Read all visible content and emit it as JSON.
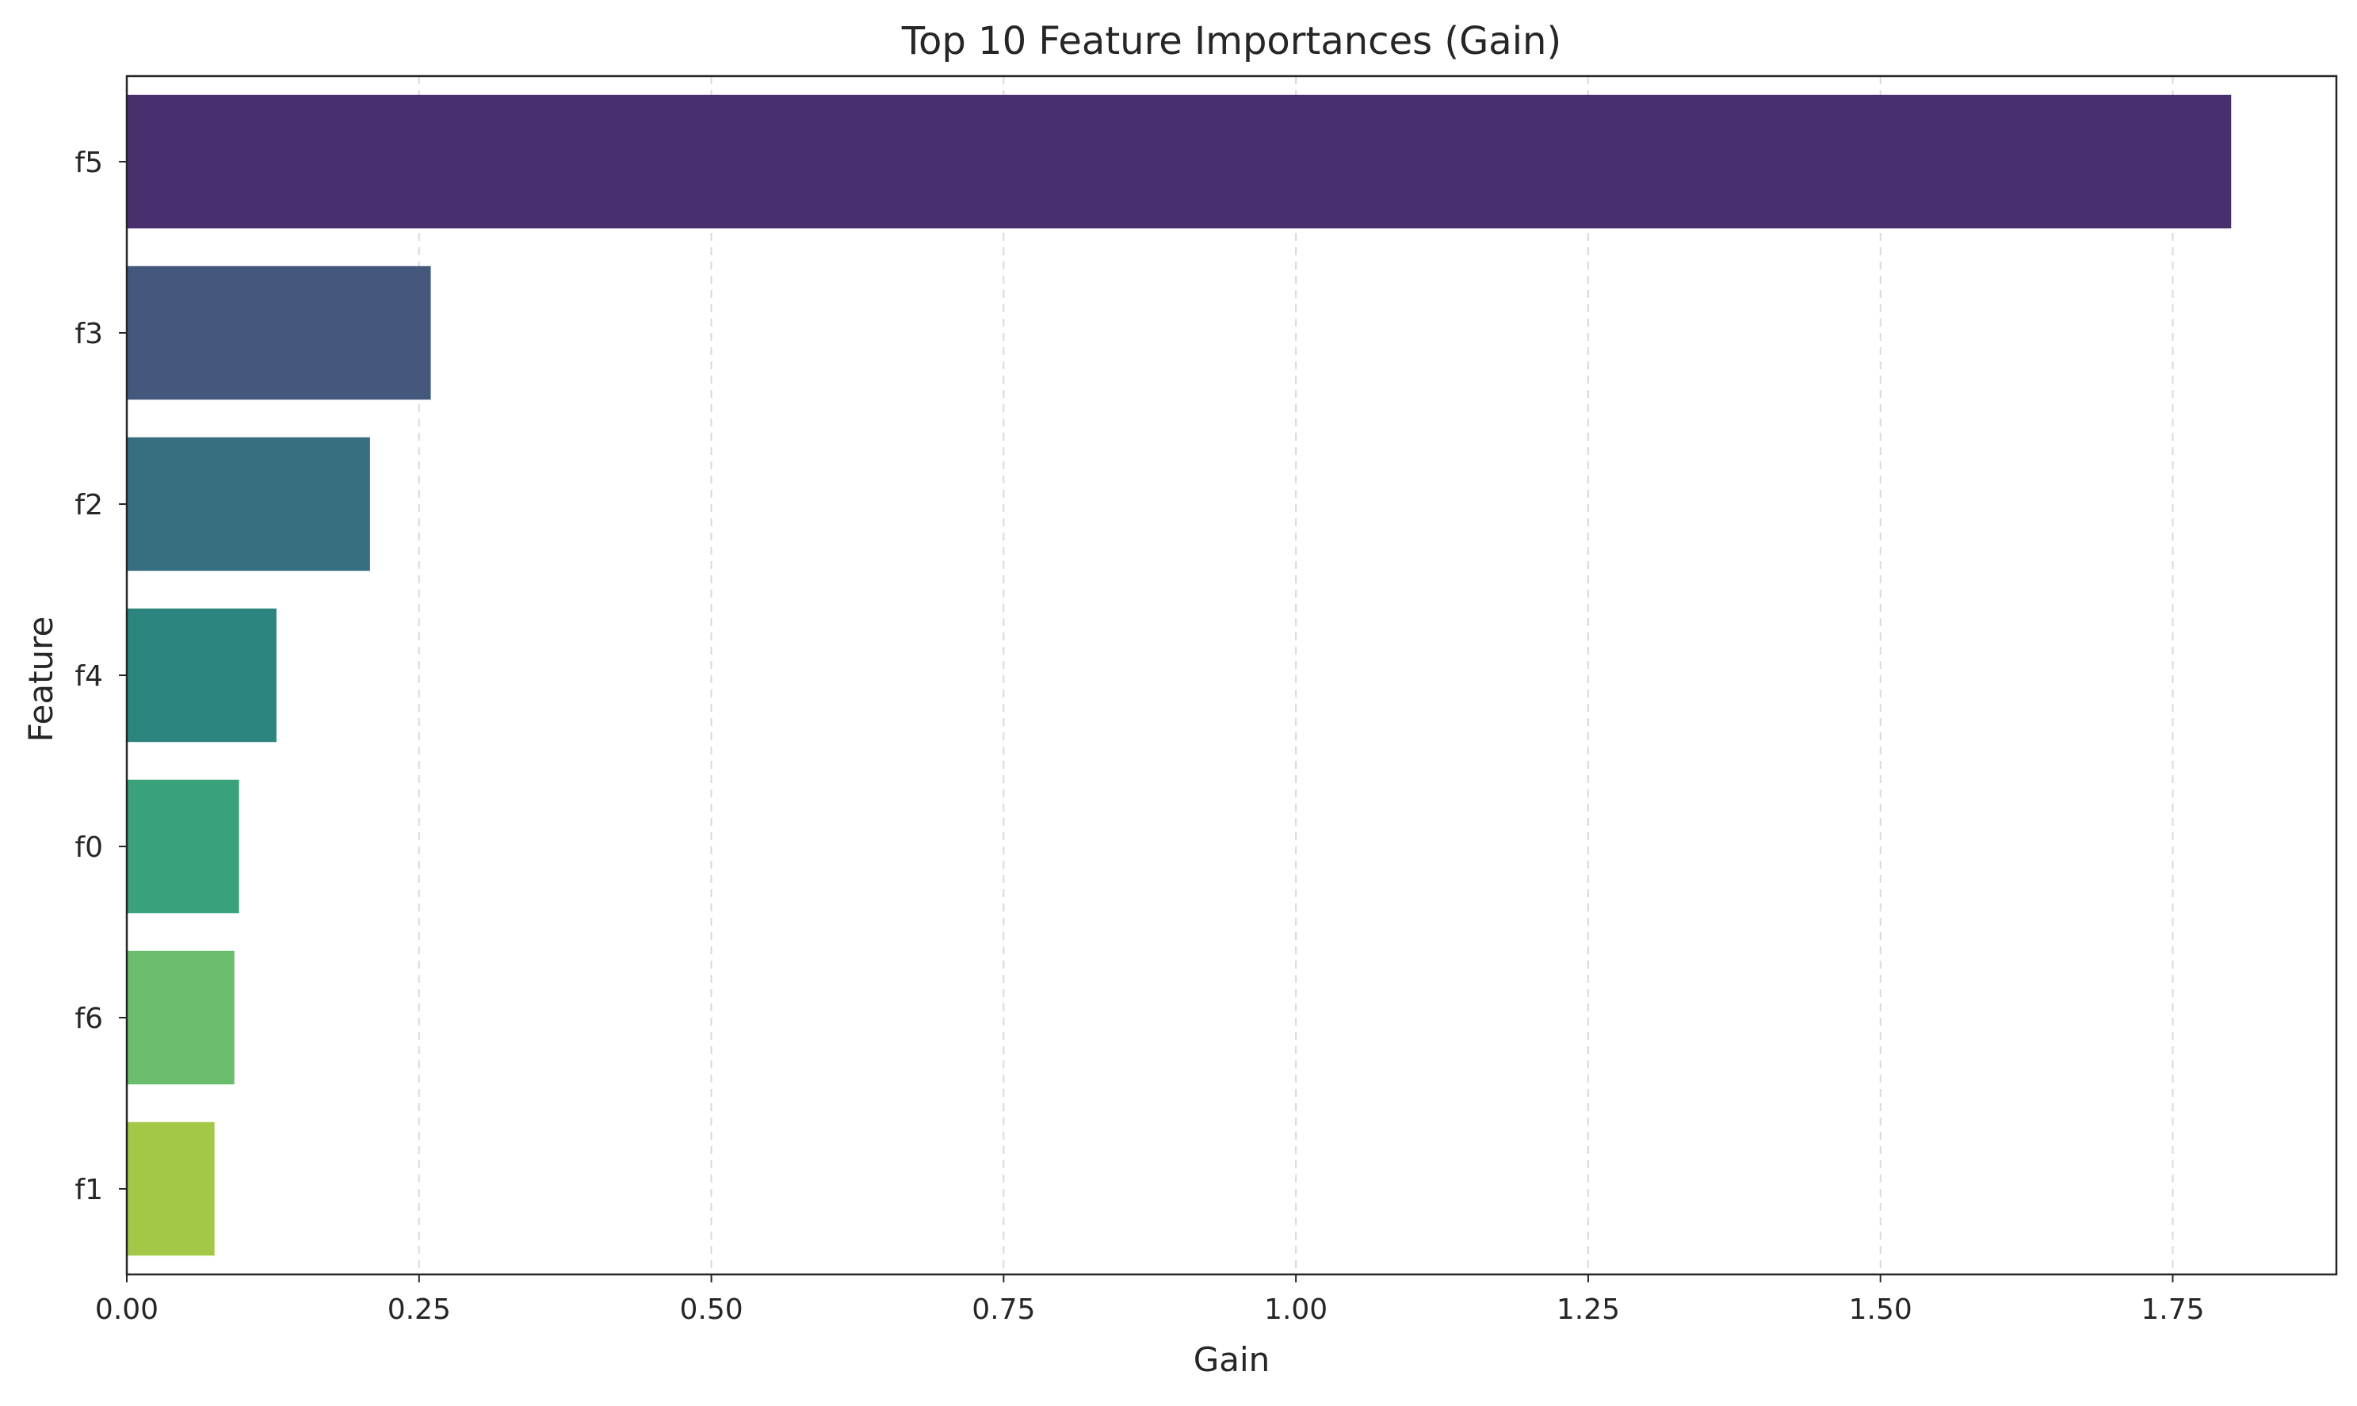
{
  "chart_data": {
    "type": "bar",
    "orientation": "horizontal",
    "title": "Top 10 Feature Importances (Gain)",
    "xlabel": "Gain",
    "ylabel": "Feature",
    "categories": [
      "f5",
      "f3",
      "f2",
      "f4",
      "f0",
      "f6",
      "f1"
    ],
    "values": [
      1.8,
      0.26,
      0.208,
      0.128,
      0.096,
      0.092,
      0.075
    ],
    "colors": [
      "#482f6e",
      "#43587c",
      "#366e80",
      "#2b847d",
      "#3aa27a",
      "#6bbd6e",
      "#a3c848"
    ],
    "xlim": [
      0,
      1.89
    ],
    "xticks": [
      0.0,
      0.25,
      0.5,
      0.75,
      1.0,
      1.25,
      1.5,
      1.75
    ],
    "xtick_labels": [
      "0.00",
      "0.25",
      "0.50",
      "0.75",
      "1.00",
      "1.25",
      "1.50",
      "1.75"
    ],
    "grid": "x-dashed",
    "legend": "none"
  }
}
